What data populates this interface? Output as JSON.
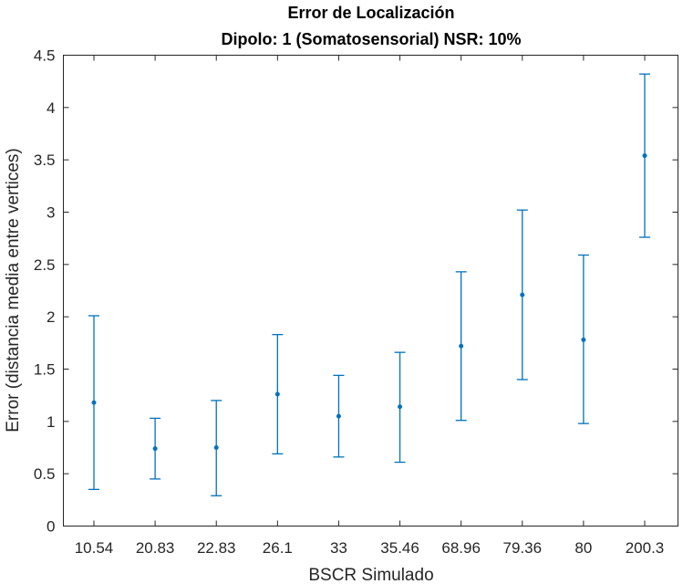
{
  "chart_data": {
    "type": "errorbar",
    "title": "Error de Localización",
    "subtitle": "Dipolo: 1 (Somatosensorial) NSR: 10%",
    "xlabel": "BSCR Simulado",
    "ylabel": "Error (distancia media entre vertices)",
    "categories": [
      "10.54",
      "20.83",
      "22.83",
      "26.1",
      "33",
      "35.46",
      "68.96",
      "79.36",
      "80",
      "200.3"
    ],
    "values": [
      1.18,
      0.74,
      0.75,
      1.26,
      1.05,
      1.14,
      1.72,
      2.21,
      1.78,
      3.54
    ],
    "lower": [
      0.35,
      0.45,
      0.29,
      0.69,
      0.66,
      0.61,
      1.01,
      1.4,
      0.98,
      2.76
    ],
    "upper": [
      2.01,
      1.03,
      1.2,
      1.83,
      1.44,
      1.66,
      2.43,
      3.02,
      2.59,
      4.32
    ],
    "ylim": [
      0,
      4.5
    ],
    "yticks": [
      "0",
      "0.5",
      "1",
      "1.5",
      "2",
      "2.5",
      "3",
      "3.5",
      "4",
      "4.5"
    ],
    "grid": false,
    "color": "#0072BD"
  }
}
